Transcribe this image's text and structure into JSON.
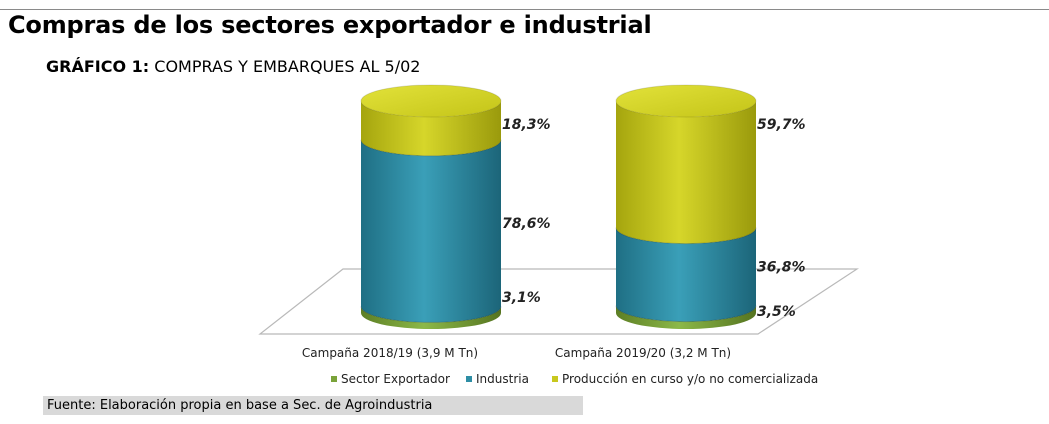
{
  "header": {
    "title": "Compras de los sectores exportador e industrial",
    "subtitle_prefix": "GRÁFICO 1:",
    "subtitle_text": "COMPRAS Y EMBARQUES AL 5/02"
  },
  "chart_data": {
    "type": "bar",
    "stacked": true,
    "style": "3d-cylinder",
    "categories": [
      "Campaña 2018/19 (3,9 M Tn)",
      "Campaña 2019/20 (3,2 M Tn)"
    ],
    "series": [
      {
        "name": "Sector Exportador",
        "values": [
          3.1,
          3.5
        ],
        "labels": [
          "3,1%",
          "3,5%"
        ],
        "color": "#7aa33a"
      },
      {
        "name": "Industria",
        "values": [
          78.6,
          36.8
        ],
        "labels": [
          "78,6%",
          "36,8%"
        ],
        "color": "#2e8ea5"
      },
      {
        "name": "Producción en curso y/o no comercializada",
        "values": [
          18.3,
          59.7
        ],
        "labels": [
          "18,3%",
          "59,7%"
        ],
        "color": "#c8c81e"
      }
    ],
    "legend_position": "bottom",
    "grid": false
  },
  "footer": {
    "source": "Fuente: Elaboración propia en base a Sec. de Agroindustria"
  }
}
